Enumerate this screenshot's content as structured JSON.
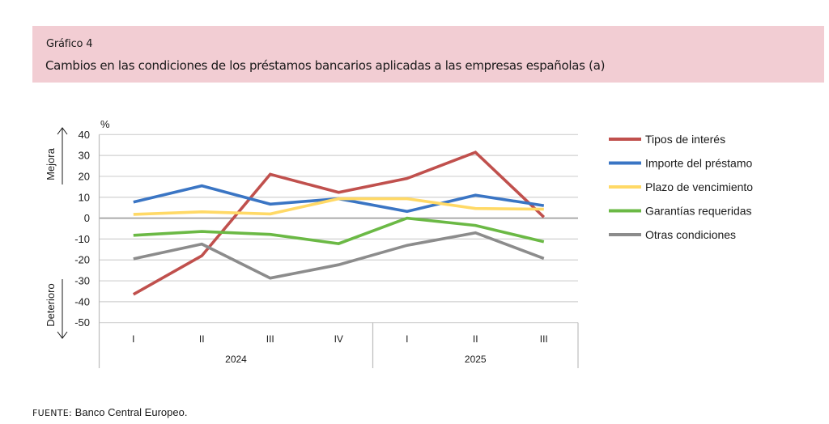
{
  "header": {
    "label": "Gráfico 4",
    "title": "Cambios en las condiciones de los préstamos bancarios aplicadas a las empresas españolas (a)"
  },
  "source": {
    "key": "FUENTE:",
    "value": "Banco Central Europeo."
  },
  "chart_data": {
    "type": "line",
    "title": "Cambios en las condiciones de los préstamos bancarios aplicadas a las empresas españolas (a)",
    "ylabel": "%",
    "xlabel": "",
    "ylim": [
      -50,
      40
    ],
    "yticks": [
      40,
      30,
      20,
      10,
      0,
      -10,
      -20,
      -30,
      -40,
      -50
    ],
    "ytick_labels": [
      "40",
      "30",
      "20",
      "10",
      "0",
      "-10",
      "-20",
      "-30",
      "-40",
      "-50"
    ],
    "grid": true,
    "upper_annotation": "Mejora",
    "lower_annotation": "Deterioro",
    "categories": [
      "I",
      "II",
      "III",
      "IV",
      "I",
      "II",
      "III"
    ],
    "groups": [
      {
        "label": "2024",
        "count": 4
      },
      {
        "label": "2025",
        "count": 3
      }
    ],
    "legend_position": "right",
    "series": [
      {
        "name": "Tipos de interés",
        "color": "#C0504D",
        "values": [
          -36.5,
          -18,
          21,
          12.3,
          19,
          31.5,
          0.5
        ]
      },
      {
        "name": "Importe del préstamo",
        "color": "#3A75C4",
        "values": [
          7.7,
          15.5,
          6.7,
          9.3,
          3.2,
          11,
          6
        ]
      },
      {
        "name": "Plazo de vencimiento",
        "color": "#FFD966",
        "values": [
          1.8,
          3,
          2,
          9.3,
          9.3,
          4.6,
          4.3
        ]
      },
      {
        "name": "Garantías requeridas",
        "color": "#6BB945",
        "values": [
          -8.2,
          -6.4,
          -7.8,
          -12.2,
          0,
          -3.5,
          -11.3
        ]
      },
      {
        "name": "Otras condiciones",
        "color": "#8C8C8C",
        "values": [
          -19.5,
          -12.4,
          -28.7,
          -22.3,
          -13,
          -7,
          -19.3
        ]
      }
    ]
  }
}
